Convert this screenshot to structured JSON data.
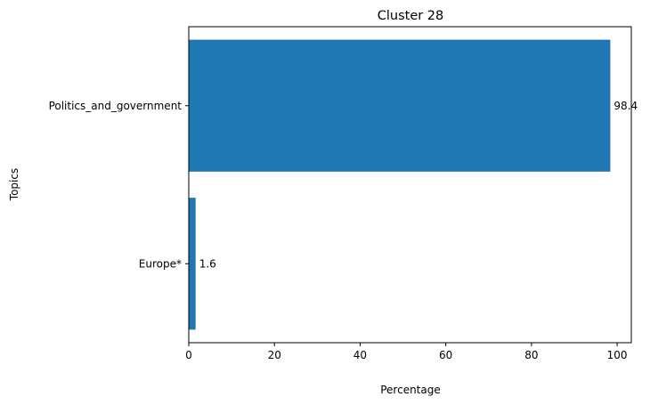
{
  "chart_data": {
    "type": "bar",
    "orientation": "horizontal",
    "title": "Cluster 28",
    "xlabel": "Percentage",
    "ylabel": "Topics",
    "categories": [
      "Politics_and_government",
      "Europe*"
    ],
    "values": [
      98.4,
      1.6
    ],
    "data_labels": [
      "98.4",
      "1.6"
    ],
    "xlim": [
      0,
      103.3
    ],
    "xticks": [
      0,
      20,
      40,
      60,
      80,
      100
    ],
    "xtick_labels": [
      "0",
      "20",
      "40",
      "60",
      "80",
      "100"
    ],
    "bar_color": "#1f77b4",
    "grid": false,
    "legend": "none"
  }
}
